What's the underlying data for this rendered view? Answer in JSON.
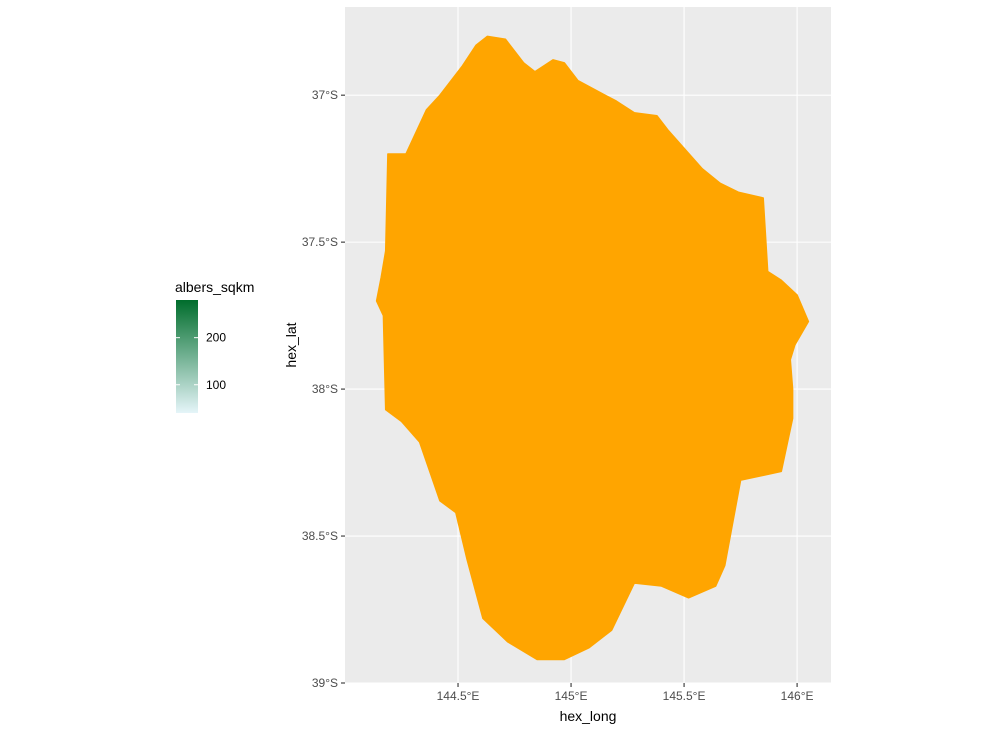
{
  "chart_data": {
    "type": "map",
    "title": "",
    "xlabel": "hex_long",
    "ylabel": "hex_lat",
    "xlim": [
      144.0,
      146.15
    ],
    "ylim": [
      -39.0,
      -36.7
    ],
    "x_ticks": [
      {
        "value": 144.5,
        "label": "144.5°E"
      },
      {
        "value": 145.0,
        "label": "145°E"
      },
      {
        "value": 145.5,
        "label": "145.5°E"
      },
      {
        "value": 146.0,
        "label": "146°E"
      }
    ],
    "y_ticks": [
      {
        "value": -37.0,
        "label": "37°S"
      },
      {
        "value": -37.5,
        "label": "37.5°S"
      },
      {
        "value": -38.0,
        "label": "38°S"
      },
      {
        "value": -38.5,
        "label": "38.5°S"
      },
      {
        "value": -39.0,
        "label": "39°S"
      }
    ],
    "grid": true,
    "panel_background": "#ebebeb",
    "grid_color": "#ffffff",
    "fill_color": "#ffa500",
    "region_outline": [
      [
        144.63,
        -36.8
      ],
      [
        144.71,
        -36.81
      ],
      [
        144.79,
        -36.89
      ],
      [
        144.84,
        -36.92
      ],
      [
        144.92,
        -36.88
      ],
      [
        144.97,
        -36.89
      ],
      [
        145.03,
        -36.95
      ],
      [
        145.15,
        -37.0
      ],
      [
        145.2,
        -37.02
      ],
      [
        145.28,
        -37.06
      ],
      [
        145.38,
        -37.07
      ],
      [
        145.43,
        -37.12
      ],
      [
        145.58,
        -37.25
      ],
      [
        145.66,
        -37.3
      ],
      [
        145.74,
        -37.33
      ],
      [
        145.85,
        -37.35
      ],
      [
        145.87,
        -37.6
      ],
      [
        145.93,
        -37.63
      ],
      [
        146.0,
        -37.68
      ],
      [
        146.05,
        -37.77
      ],
      [
        145.99,
        -37.85
      ],
      [
        145.97,
        -37.9
      ],
      [
        145.98,
        -38.0
      ],
      [
        145.98,
        -38.1
      ],
      [
        145.93,
        -38.28
      ],
      [
        145.75,
        -38.31
      ],
      [
        145.68,
        -38.6
      ],
      [
        145.64,
        -38.67
      ],
      [
        145.52,
        -38.71
      ],
      [
        145.4,
        -38.67
      ],
      [
        145.28,
        -38.66
      ],
      [
        145.18,
        -38.82
      ],
      [
        145.08,
        -38.88
      ],
      [
        144.97,
        -38.92
      ],
      [
        144.85,
        -38.92
      ],
      [
        144.72,
        -38.86
      ],
      [
        144.61,
        -38.78
      ],
      [
        144.54,
        -38.58
      ],
      [
        144.49,
        -38.42
      ],
      [
        144.42,
        -38.38
      ],
      [
        144.33,
        -38.18
      ],
      [
        144.25,
        -38.11
      ],
      [
        144.18,
        -38.07
      ],
      [
        144.17,
        -37.75
      ],
      [
        144.14,
        -37.7
      ],
      [
        144.16,
        -37.62
      ],
      [
        144.18,
        -37.53
      ],
      [
        144.19,
        -37.2
      ],
      [
        144.27,
        -37.2
      ],
      [
        144.36,
        -37.05
      ],
      [
        144.42,
        -37.0
      ],
      [
        144.52,
        -36.9
      ],
      [
        144.58,
        -36.83
      ]
    ]
  },
  "legend": {
    "title": "albers_sqkm",
    "gradient_low_color": "#e5f5f9",
    "gradient_high_color": "#006d2c",
    "range": [
      40,
      280
    ],
    "breaks": [
      {
        "value": 100,
        "label": "100"
      },
      {
        "value": 200,
        "label": "200"
      }
    ]
  }
}
